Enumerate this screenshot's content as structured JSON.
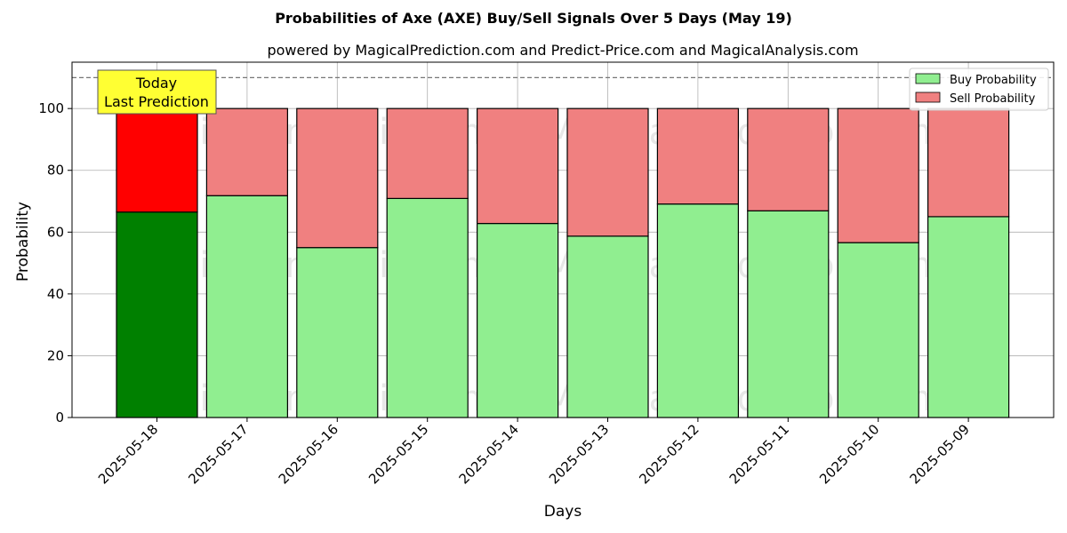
{
  "chart_data": {
    "type": "bar",
    "stacked": true,
    "title": "Probabilities of Axe (AXE) Buy/Sell Signals Over 5 Days (May 19)",
    "subtitle": "powered by MagicalPrediction.com and Predict-Price.com and MagicalAnalysis.com",
    "xlabel": "Days",
    "ylabel": "Probability",
    "ylim": [
      0,
      115
    ],
    "yticks": [
      0,
      20,
      40,
      60,
      80,
      100
    ],
    "categories": [
      "2025-05-18",
      "2025-05-17",
      "2025-05-16",
      "2025-05-15",
      "2025-05-14",
      "2025-05-13",
      "2025-05-12",
      "2025-05-11",
      "2025-05-10",
      "2025-05-09"
    ],
    "series": [
      {
        "name": "Buy Probability",
        "color": "#90EE90",
        "highlight_color": "#008000",
        "values": [
          66.5,
          71.8,
          55.0,
          70.9,
          62.8,
          58.7,
          69.1,
          66.9,
          56.6,
          65.0
        ]
      },
      {
        "name": "Sell Probability",
        "color": "#F08080",
        "highlight_color": "#FF0000",
        "values": [
          33.5,
          28.2,
          45.0,
          29.1,
          37.2,
          41.3,
          30.9,
          33.1,
          43.4,
          35.0
        ]
      }
    ],
    "reference_line": 110,
    "grid": true,
    "legend_position": "top-right",
    "annotation": {
      "line1": "Today",
      "line2": "Last Prediction",
      "color": "#FFFF33"
    },
    "watermarks": [
      "MagicalAnalysis.com",
      "MagicalPrediction.com"
    ]
  }
}
